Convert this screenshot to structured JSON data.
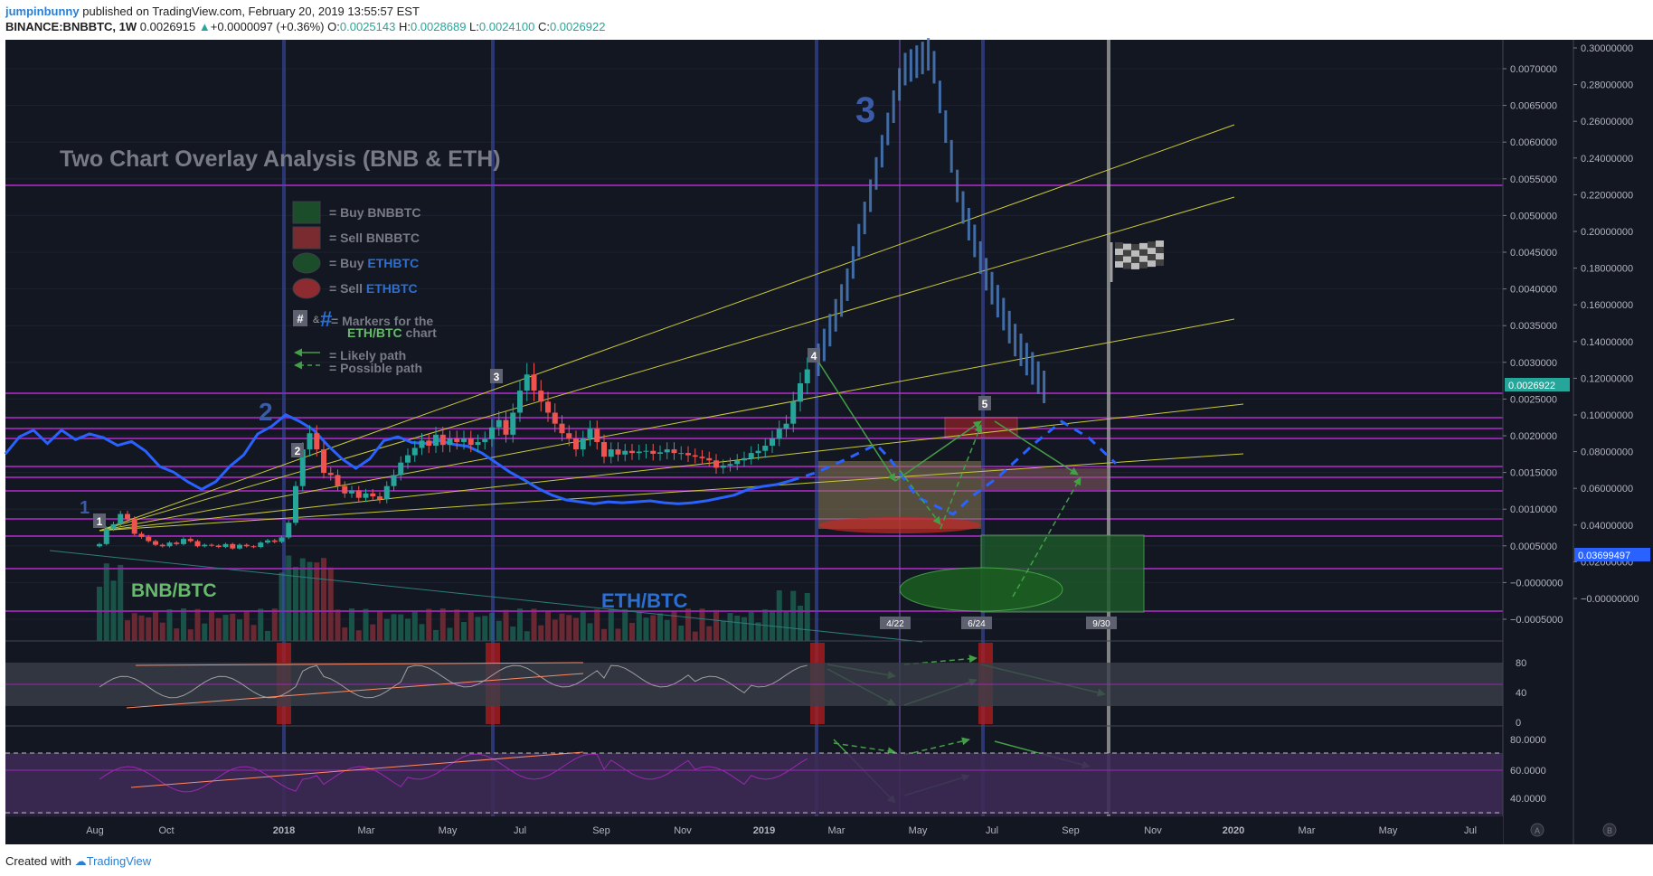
{
  "header": {
    "author": "jumpinbunny",
    "published_text": "published on TradingView.com, February 20, 2019 13:55:57 EST",
    "symbol": "BINANCE:BNBBTC, 1W",
    "price": "0.0026915",
    "change": "+0.0000097 (+0.36%)",
    "o_label": "O:",
    "o_value": "0.0025143",
    "h_label": "H:",
    "h_value": "0.0028689",
    "l_label": "L:",
    "l_value": "0.0024100",
    "c_label": "C:",
    "c_value": "0.0026922"
  },
  "footer": {
    "created_with": "Created with",
    "brand": "TradingView"
  },
  "colors": {
    "background": "#131722",
    "bull": "#26a69a",
    "bear": "#ef5350",
    "eth_line": "#2962ff",
    "purple_line": "#9c27b0",
    "trend_yellow": "#c9c93a",
    "blue_vline": "#3f51b5"
  },
  "chart_data": {
    "type": "candlestick",
    "title": "Two Chart Overlay Analysis (BNB & ETH)",
    "series_labels": {
      "bnb": "BNB/BTC",
      "eth": "ETH/BTC"
    },
    "x_ticks": [
      "Aug",
      "Oct",
      "2018",
      "Mar",
      "May",
      "Jul",
      "Sep",
      "Nov",
      "2019",
      "Mar",
      "May",
      "Jul",
      "Sep",
      "Nov",
      "2020",
      "Mar",
      "May",
      "Jul"
    ],
    "y_left_ticks": [
      "0.0070000",
      "0.0065000",
      "0.0060000",
      "0.0055000",
      "0.0050000",
      "0.0045000",
      "0.0040000",
      "0.0035000",
      "0.0030000",
      "0.0025000",
      "0.0020000",
      "0.0015000",
      "0.0010000",
      "0.0005000",
      "−0.0000000",
      "−0.0005000"
    ],
    "y_right_ticks": [
      "0.30000000",
      "0.28000000",
      "0.26000000",
      "0.24000000",
      "0.22000000",
      "0.20000000",
      "0.18000000",
      "0.16000000",
      "0.14000000",
      "0.12000000",
      "0.10000000",
      "0.08000000",
      "0.06000000",
      "0.04000000",
      "0.02000000",
      "−0.00000000"
    ],
    "price_tags": [
      "0.0026922",
      "0.03699497"
    ],
    "rsi_ticks": [
      "80",
      "40",
      "0"
    ],
    "stoch_ticks": [
      "80.0000",
      "60.0000",
      "40.0000"
    ],
    "date_labels": [
      "4/22",
      "6/24",
      "9/30"
    ],
    "wave_labels": [
      "1",
      "2",
      "3"
    ],
    "markers": [
      "1",
      "2",
      "3",
      "4",
      "5"
    ],
    "axis_badges": [
      "A",
      "B"
    ],
    "legend": [
      {
        "swatch": "green-rect",
        "label": "= Buy BNBBTC"
      },
      {
        "swatch": "red-rect",
        "label": "= Sell BNBBTC"
      },
      {
        "swatch": "green-ellipse",
        "label_prefix": "= Buy ",
        "label_em": "ETHBTC"
      },
      {
        "swatch": "red-ellipse",
        "label_prefix": "= Sell ",
        "label_em": "ETHBTC"
      },
      {
        "swatch": "markers",
        "label": "= Markers for the",
        "label2_em": "ETH/BTC",
        "label2_suffix": " chart"
      },
      {
        "swatch": "solid-arrow",
        "label": "= Likely path"
      },
      {
        "swatch": "dashed-arrow",
        "label": "= Possible path"
      }
    ],
    "legend_marker_glyphs": [
      "#",
      "&",
      "#"
    ],
    "bnb_closes": [
      0.00031,
      0.00052,
      0.00058,
      0.00072,
      0.00065,
      0.00045,
      0.00041,
      0.00035,
      0.0003,
      0.00028,
      0.00033,
      0.00031,
      0.00038,
      0.00035,
      0.00028,
      0.0003,
      0.00029,
      0.00027,
      0.00031,
      0.00025,
      0.0003,
      0.00028,
      0.00027,
      0.00033,
      0.00036,
      0.00034,
      0.0004,
      0.0006,
      0.0011,
      0.0016,
      0.00182,
      0.0016,
      0.00128,
      0.00125,
      0.0011,
      0.001,
      0.00104,
      0.00094,
      0.001,
      0.00096,
      0.00092,
      0.0011,
      0.00125,
      0.00142,
      0.00152,
      0.00162,
      0.00172,
      0.00165,
      0.0018,
      0.00166,
      0.00175,
      0.0017,
      0.00175,
      0.00166,
      0.0017,
      0.00174,
      0.0019,
      0.002,
      0.0018,
      0.0021,
      0.0024,
      0.00262,
      0.0024,
      0.00225,
      0.0021,
      0.00195,
      0.00182,
      0.00175,
      0.0016,
      0.00175,
      0.00188,
      0.0017,
      0.0015,
      0.0016,
      0.00153,
      0.00158,
      0.00155,
      0.00157,
      0.00158,
      0.00154,
      0.00156,
      0.0016,
      0.00155,
      0.00155,
      0.00152,
      0.0015,
      0.00148,
      0.00145,
      0.00135,
      0.00138,
      0.0014,
      0.00145,
      0.00148,
      0.00155,
      0.00158,
      0.00165,
      0.00175,
      0.00188,
      0.00195,
      0.00225,
      0.0025,
      0.00269
    ],
    "eth_values": [
      0.065,
      0.083,
      0.09,
      0.076,
      0.09,
      0.08,
      0.086,
      0.082,
      0.074,
      0.078,
      0.068,
      0.052,
      0.046,
      0.036,
      0.028,
      0.036,
      0.052,
      0.064,
      0.086,
      0.094,
      0.106,
      0.099,
      0.09,
      0.074,
      0.06,
      0.05,
      0.06,
      0.079,
      0.083,
      0.077,
      0.076,
      0.079,
      0.075,
      0.073,
      0.066,
      0.056,
      0.046,
      0.038,
      0.029,
      0.022,
      0.017,
      0.015,
      0.013,
      0.015,
      0.014,
      0.015,
      0.016,
      0.014,
      0.013,
      0.014,
      0.016,
      0.019,
      0.022,
      0.028,
      0.031,
      0.033,
      0.037
    ],
    "projection_eth_values": [
      0.037,
      0.046,
      0.061,
      0.075,
      0.06,
      0.02,
      0.002,
      0.02,
      0.041,
      0.076,
      0.099,
      0.082,
      0.055
    ],
    "projection_bnb_closes": [
      0.00269,
      0.0039,
      0.0062,
      0.0072,
      0.0062,
      0.0042,
      0.0036,
      0.0032,
      0.003
    ]
  }
}
